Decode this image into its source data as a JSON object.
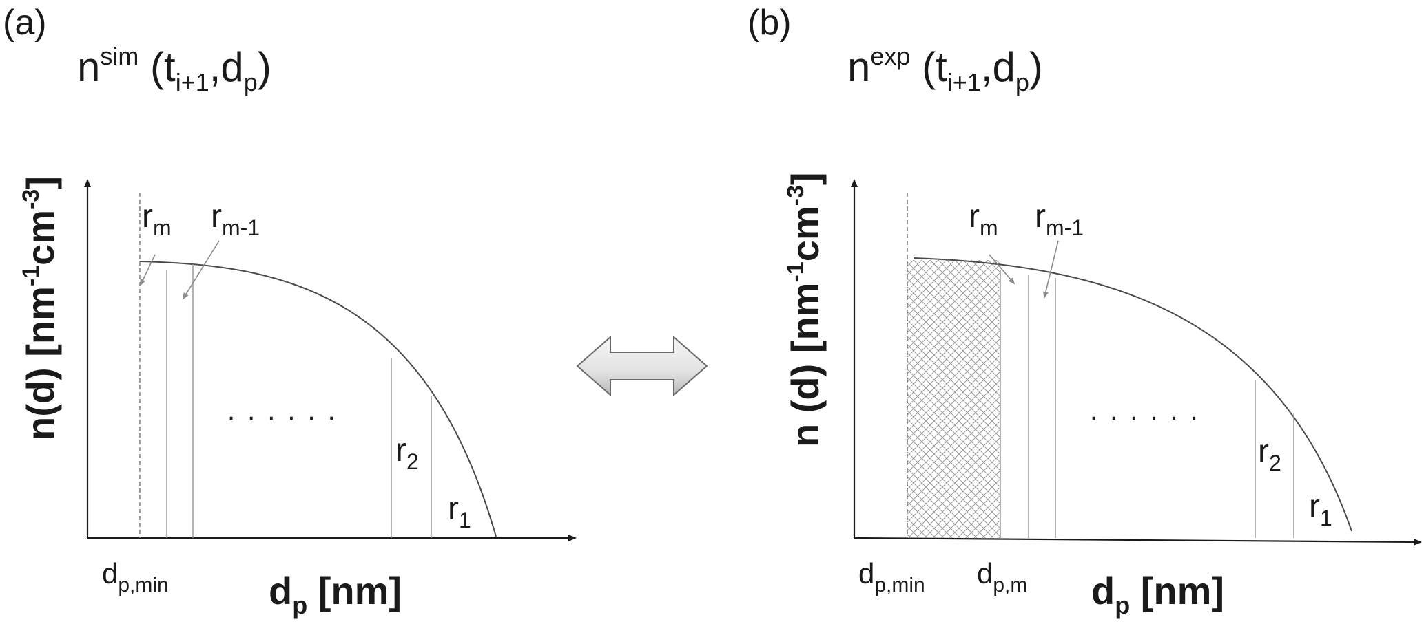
{
  "panel_a": {
    "label": "(a)",
    "title": {
      "base": "n",
      "sup": "sim",
      "open": " (t",
      "sub1": "i+1",
      "mid": ",d",
      "sub2": "p",
      "close": ")"
    },
    "ylabel": {
      "pre": "n(d) [nm",
      "sup1": "-1",
      "mid": "cm",
      "sup2": "-3",
      "post": "]"
    },
    "xlabel": {
      "base": "d",
      "sub": "p",
      "post": " [nm]"
    },
    "tick_dpmin": {
      "base": "d",
      "sub": "p,min"
    },
    "r_m": {
      "base": "r",
      "sub": "m"
    },
    "r_m1": {
      "base": "r",
      "sub": "m-1"
    },
    "r_2": {
      "base": "r",
      "sub": "2"
    },
    "r_1": {
      "base": "r",
      "sub": "1"
    },
    "dots": "......"
  },
  "panel_b": {
    "label": "(b)",
    "title": {
      "base": "n",
      "sup": "exp",
      "open": " (t",
      "sub1": "i+1",
      "mid": ",d",
      "sub2": "p",
      "close": ")"
    },
    "ylabel": {
      "pre": "n (d) [nm",
      "sup1": "-1",
      "mid": "cm",
      "sup2": "-3",
      "post": "]"
    },
    "xlabel": {
      "base": "d",
      "sub": "p",
      "post": " [nm]"
    },
    "tick_dpmin": {
      "base": "d",
      "sub": "p,min"
    },
    "tick_dpm": {
      "base": "d",
      "sub": "p,m"
    },
    "r_m": {
      "base": "r",
      "sub": "m"
    },
    "r_m1": {
      "base": "r",
      "sub": "m-1"
    },
    "r_2": {
      "base": "r",
      "sub": "2"
    },
    "r_1": {
      "base": "r",
      "sub": "1"
    },
    "dots": "......"
  },
  "colors": {
    "arrow_fill_light": "#f2f2f2",
    "arrow_fill_dark": "#bdbdbd",
    "hatch": "#9a9a9a"
  },
  "icons": {
    "comparison": "double-arrow-icon"
  }
}
